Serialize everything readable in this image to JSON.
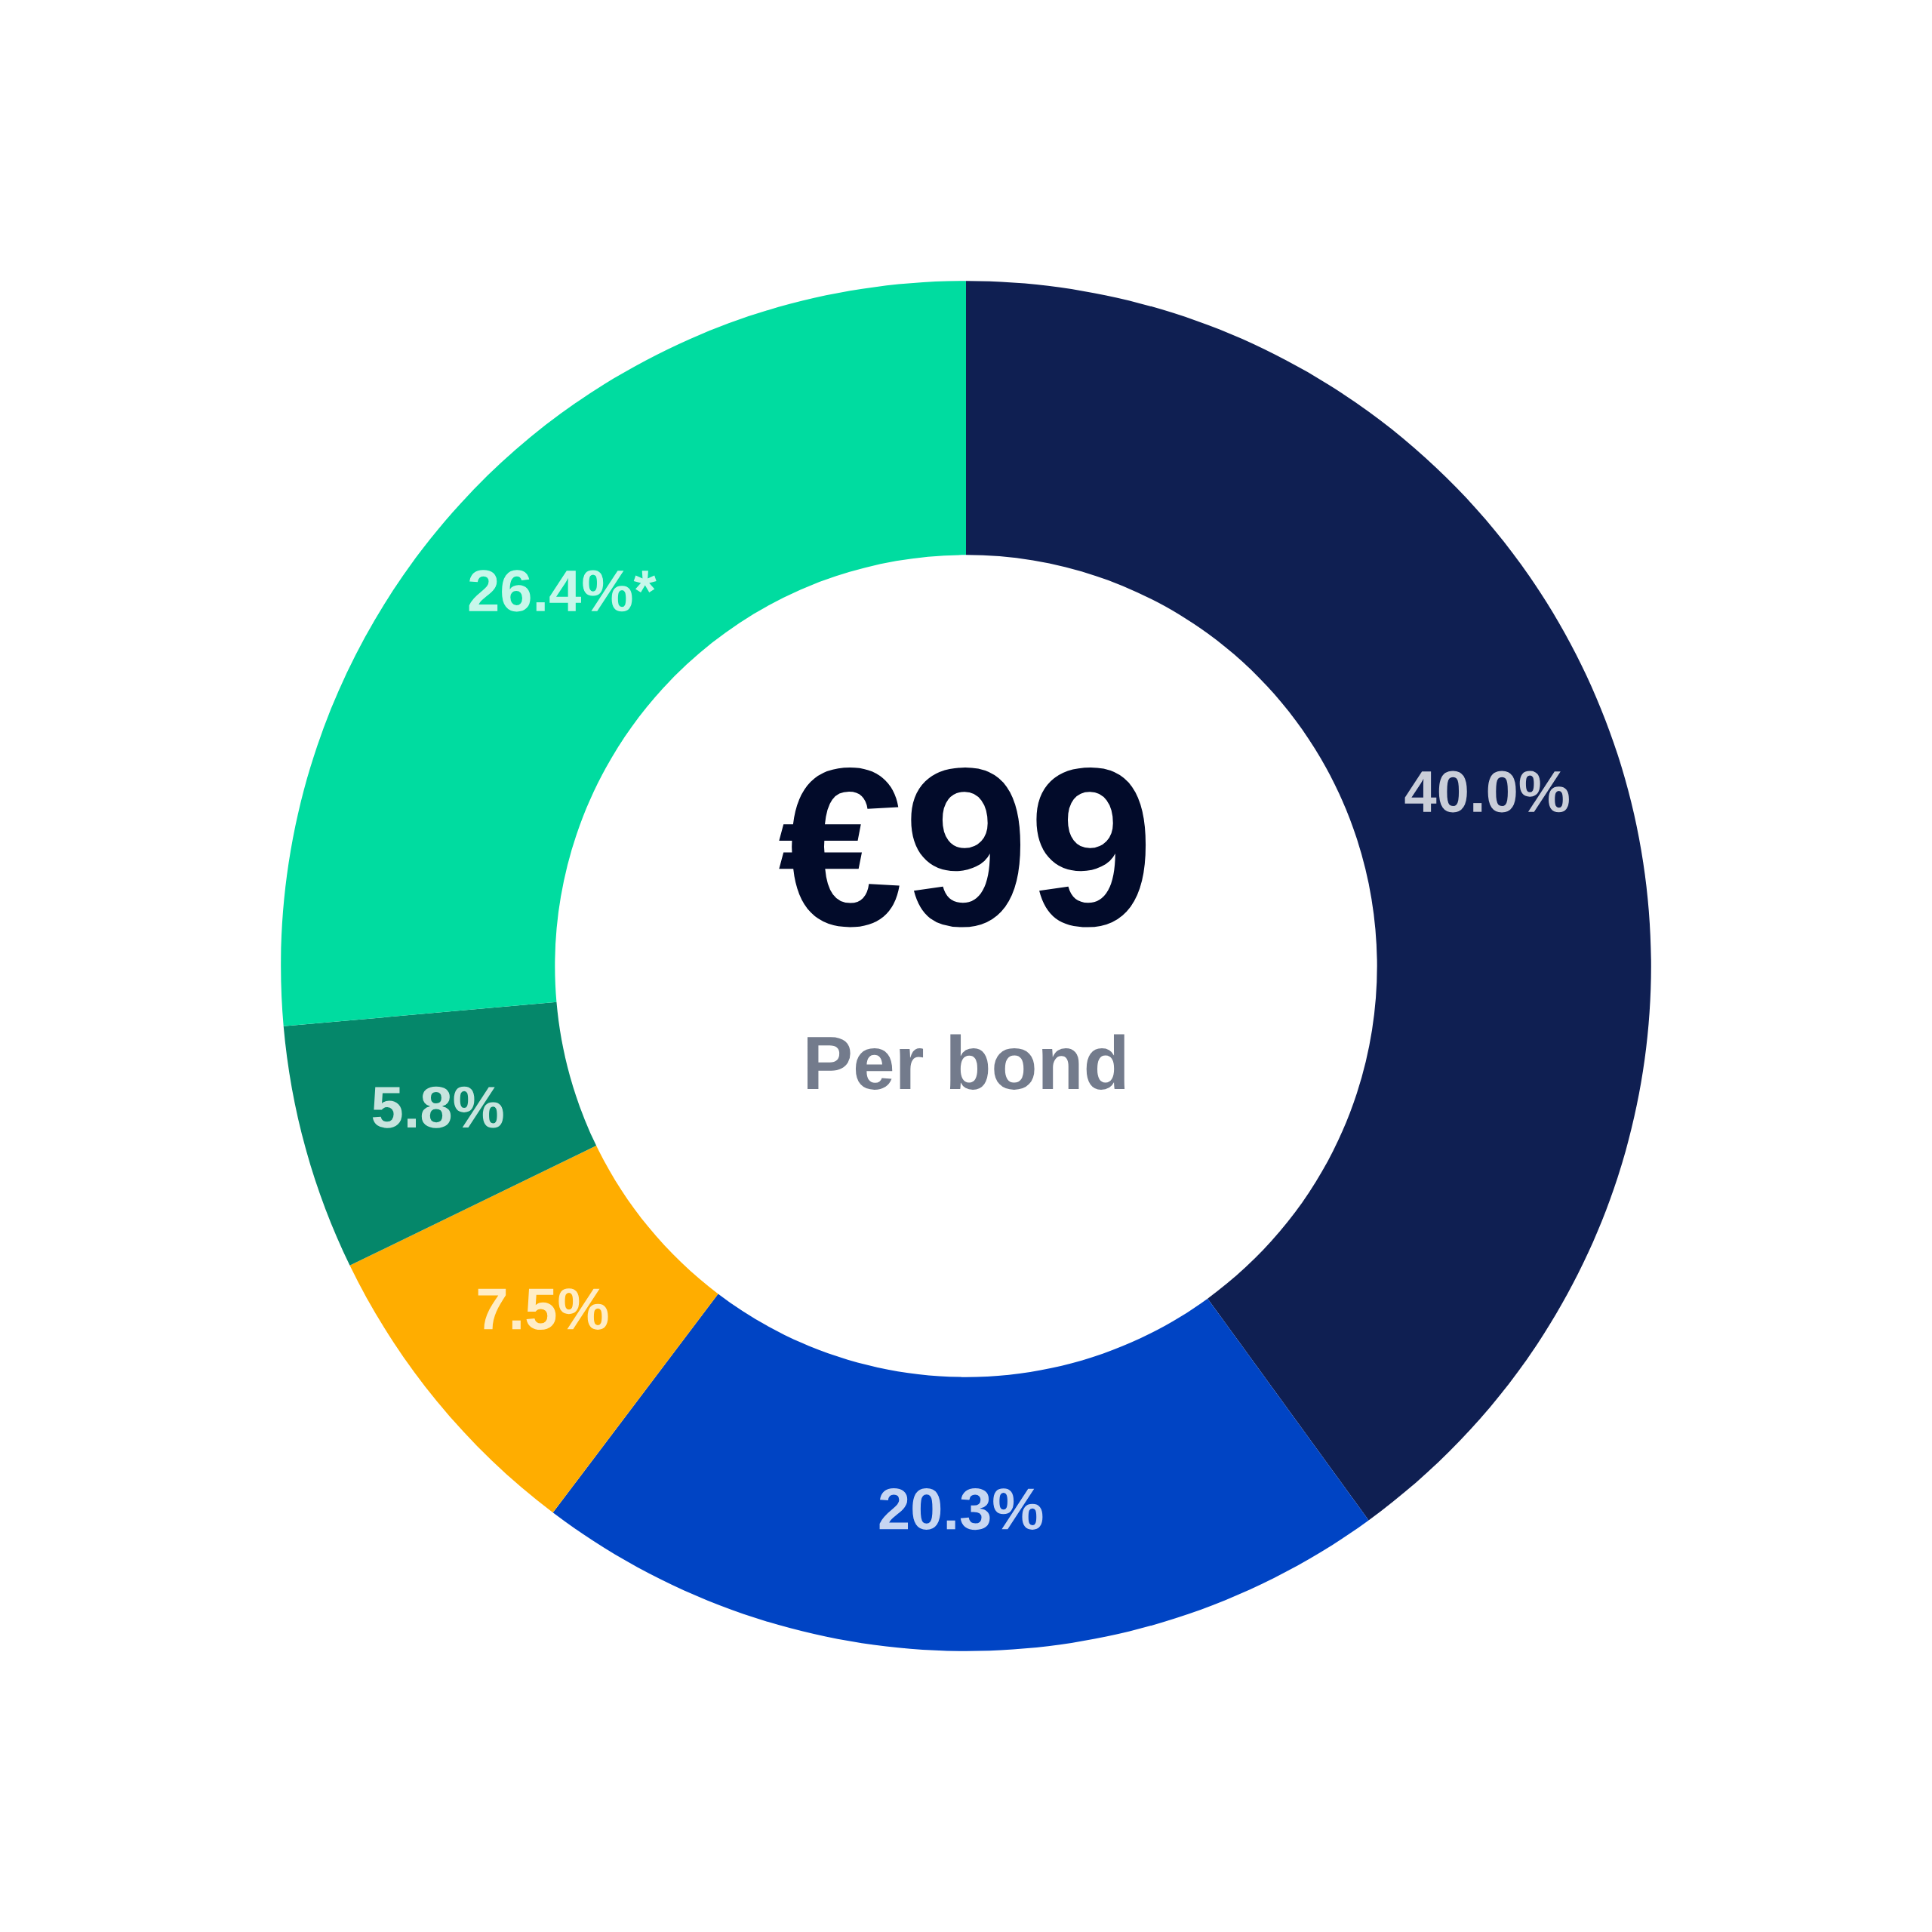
{
  "chart_data": {
    "type": "donut",
    "categories": [
      null,
      null,
      null,
      null,
      null
    ],
    "values": [
      40.0,
      20.3,
      7.5,
      5.8,
      26.4
    ],
    "colors": [
      "#0f1f52",
      "#0044c4",
      "#ffad00",
      "#05876a",
      "#00dca0"
    ],
    "value_labels": [
      "40.0%",
      "20.3%",
      "7.5%",
      "5.8%",
      "26.4%*"
    ],
    "annotations": [
      "€99",
      "Per bond"
    ]
  }
}
